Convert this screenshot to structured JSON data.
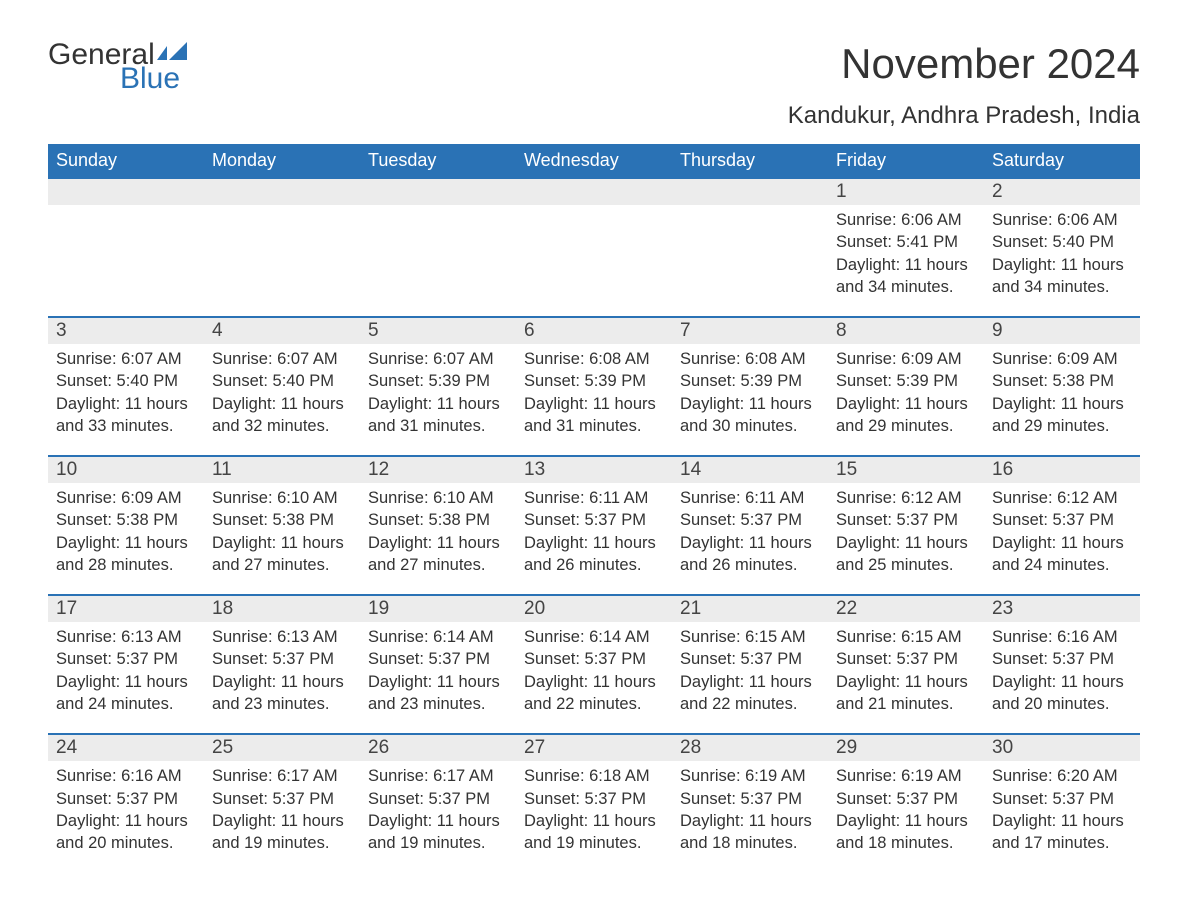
{
  "brand": {
    "part1": "General",
    "part2": "Blue",
    "flag_color": "#2a72b5"
  },
  "title": "November 2024",
  "location": "Kandukur, Andhra Pradesh, India",
  "colors": {
    "header_bg": "#2a72b5",
    "header_text": "#ffffff",
    "daynum_bg": "#ececec",
    "row_border": "#2a72b5",
    "body_text": "#333333",
    "page_bg": "#ffffff"
  },
  "fonts": {
    "title_size_pt": 32,
    "location_size_pt": 18,
    "header_size_pt": 14,
    "cell_size_pt": 12
  },
  "layout": {
    "columns": 7,
    "rows": 5,
    "aspect": "1188x918"
  },
  "weekdays": [
    "Sunday",
    "Monday",
    "Tuesday",
    "Wednesday",
    "Thursday",
    "Friday",
    "Saturday"
  ],
  "weeks": [
    [
      null,
      null,
      null,
      null,
      null,
      {
        "day": "1",
        "sunrise": "Sunrise: 6:06 AM",
        "sunset": "Sunset: 5:41 PM",
        "daylight": "Daylight: 11 hours and 34 minutes."
      },
      {
        "day": "2",
        "sunrise": "Sunrise: 6:06 AM",
        "sunset": "Sunset: 5:40 PM",
        "daylight": "Daylight: 11 hours and 34 minutes."
      }
    ],
    [
      {
        "day": "3",
        "sunrise": "Sunrise: 6:07 AM",
        "sunset": "Sunset: 5:40 PM",
        "daylight": "Daylight: 11 hours and 33 minutes."
      },
      {
        "day": "4",
        "sunrise": "Sunrise: 6:07 AM",
        "sunset": "Sunset: 5:40 PM",
        "daylight": "Daylight: 11 hours and 32 minutes."
      },
      {
        "day": "5",
        "sunrise": "Sunrise: 6:07 AM",
        "sunset": "Sunset: 5:39 PM",
        "daylight": "Daylight: 11 hours and 31 minutes."
      },
      {
        "day": "6",
        "sunrise": "Sunrise: 6:08 AM",
        "sunset": "Sunset: 5:39 PM",
        "daylight": "Daylight: 11 hours and 31 minutes."
      },
      {
        "day": "7",
        "sunrise": "Sunrise: 6:08 AM",
        "sunset": "Sunset: 5:39 PM",
        "daylight": "Daylight: 11 hours and 30 minutes."
      },
      {
        "day": "8",
        "sunrise": "Sunrise: 6:09 AM",
        "sunset": "Sunset: 5:39 PM",
        "daylight": "Daylight: 11 hours and 29 minutes."
      },
      {
        "day": "9",
        "sunrise": "Sunrise: 6:09 AM",
        "sunset": "Sunset: 5:38 PM",
        "daylight": "Daylight: 11 hours and 29 minutes."
      }
    ],
    [
      {
        "day": "10",
        "sunrise": "Sunrise: 6:09 AM",
        "sunset": "Sunset: 5:38 PM",
        "daylight": "Daylight: 11 hours and 28 minutes."
      },
      {
        "day": "11",
        "sunrise": "Sunrise: 6:10 AM",
        "sunset": "Sunset: 5:38 PM",
        "daylight": "Daylight: 11 hours and 27 minutes."
      },
      {
        "day": "12",
        "sunrise": "Sunrise: 6:10 AM",
        "sunset": "Sunset: 5:38 PM",
        "daylight": "Daylight: 11 hours and 27 minutes."
      },
      {
        "day": "13",
        "sunrise": "Sunrise: 6:11 AM",
        "sunset": "Sunset: 5:37 PM",
        "daylight": "Daylight: 11 hours and 26 minutes."
      },
      {
        "day": "14",
        "sunrise": "Sunrise: 6:11 AM",
        "sunset": "Sunset: 5:37 PM",
        "daylight": "Daylight: 11 hours and 26 minutes."
      },
      {
        "day": "15",
        "sunrise": "Sunrise: 6:12 AM",
        "sunset": "Sunset: 5:37 PM",
        "daylight": "Daylight: 11 hours and 25 minutes."
      },
      {
        "day": "16",
        "sunrise": "Sunrise: 6:12 AM",
        "sunset": "Sunset: 5:37 PM",
        "daylight": "Daylight: 11 hours and 24 minutes."
      }
    ],
    [
      {
        "day": "17",
        "sunrise": "Sunrise: 6:13 AM",
        "sunset": "Sunset: 5:37 PM",
        "daylight": "Daylight: 11 hours and 24 minutes."
      },
      {
        "day": "18",
        "sunrise": "Sunrise: 6:13 AM",
        "sunset": "Sunset: 5:37 PM",
        "daylight": "Daylight: 11 hours and 23 minutes."
      },
      {
        "day": "19",
        "sunrise": "Sunrise: 6:14 AM",
        "sunset": "Sunset: 5:37 PM",
        "daylight": "Daylight: 11 hours and 23 minutes."
      },
      {
        "day": "20",
        "sunrise": "Sunrise: 6:14 AM",
        "sunset": "Sunset: 5:37 PM",
        "daylight": "Daylight: 11 hours and 22 minutes."
      },
      {
        "day": "21",
        "sunrise": "Sunrise: 6:15 AM",
        "sunset": "Sunset: 5:37 PM",
        "daylight": "Daylight: 11 hours and 22 minutes."
      },
      {
        "day": "22",
        "sunrise": "Sunrise: 6:15 AM",
        "sunset": "Sunset: 5:37 PM",
        "daylight": "Daylight: 11 hours and 21 minutes."
      },
      {
        "day": "23",
        "sunrise": "Sunrise: 6:16 AM",
        "sunset": "Sunset: 5:37 PM",
        "daylight": "Daylight: 11 hours and 20 minutes."
      }
    ],
    [
      {
        "day": "24",
        "sunrise": "Sunrise: 6:16 AM",
        "sunset": "Sunset: 5:37 PM",
        "daylight": "Daylight: 11 hours and 20 minutes."
      },
      {
        "day": "25",
        "sunrise": "Sunrise: 6:17 AM",
        "sunset": "Sunset: 5:37 PM",
        "daylight": "Daylight: 11 hours and 19 minutes."
      },
      {
        "day": "26",
        "sunrise": "Sunrise: 6:17 AM",
        "sunset": "Sunset: 5:37 PM",
        "daylight": "Daylight: 11 hours and 19 minutes."
      },
      {
        "day": "27",
        "sunrise": "Sunrise: 6:18 AM",
        "sunset": "Sunset: 5:37 PM",
        "daylight": "Daylight: 11 hours and 19 minutes."
      },
      {
        "day": "28",
        "sunrise": "Sunrise: 6:19 AM",
        "sunset": "Sunset: 5:37 PM",
        "daylight": "Daylight: 11 hours and 18 minutes."
      },
      {
        "day": "29",
        "sunrise": "Sunrise: 6:19 AM",
        "sunset": "Sunset: 5:37 PM",
        "daylight": "Daylight: 11 hours and 18 minutes."
      },
      {
        "day": "30",
        "sunrise": "Sunrise: 6:20 AM",
        "sunset": "Sunset: 5:37 PM",
        "daylight": "Daylight: 11 hours and 17 minutes."
      }
    ]
  ]
}
